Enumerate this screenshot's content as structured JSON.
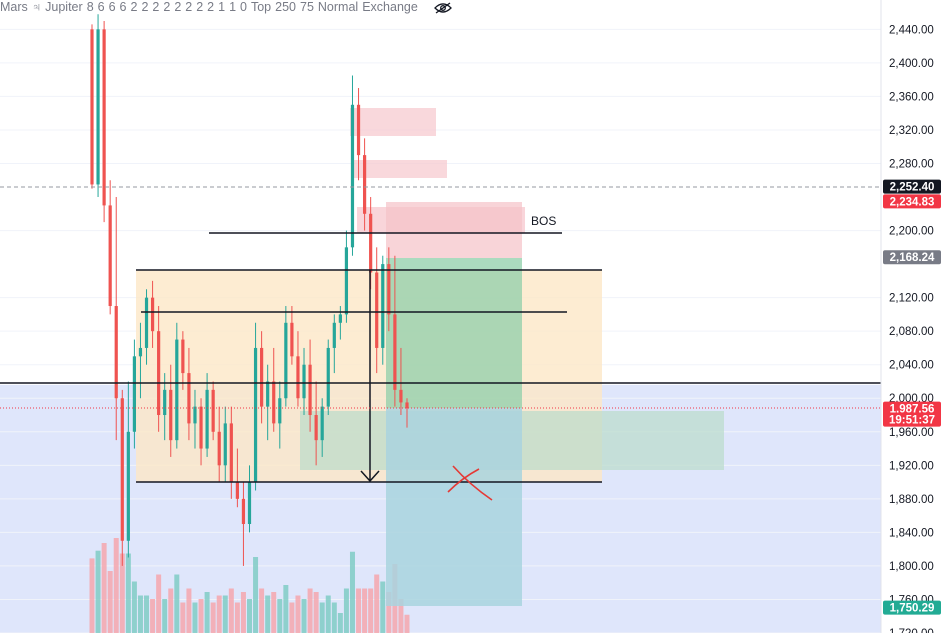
{
  "indicator": {
    "items": [
      "Mars",
      "♃",
      "Jupiter",
      "8",
      "6",
      "6",
      "6",
      "2",
      "2",
      "2",
      "2",
      "2",
      "2",
      "2",
      "2",
      "1",
      "1",
      "0",
      "Top",
      "250",
      "75",
      "Normal",
      "Exchange"
    ]
  },
  "chart_data": {
    "type": "candlestick",
    "y_axis": {
      "ticks": [
        "2,440.00",
        "2,400.00",
        "2,360.00",
        "2,320.00",
        "2,280.00",
        "2,200.00",
        "2,120.00",
        "2,080.00",
        "2,040.00",
        "2,000.00",
        "1,960.00",
        "1,920.00",
        "1,880.00",
        "1,840.00",
        "1,800.00",
        "1,760.00",
        "1,720.00"
      ],
      "tick_values": [
        2440,
        2400,
        2360,
        2320,
        2280,
        2200,
        2120,
        2080,
        2040,
        2000,
        1960,
        1920,
        1880,
        1840,
        1800,
        1760,
        1720
      ],
      "range": [
        1720,
        2475
      ]
    },
    "price_tags": [
      {
        "label": "2,252.40",
        "value": 2252.4,
        "color": "#131722"
      },
      {
        "label": "2,234.83",
        "value": 2234.83,
        "color": "#f23645"
      },
      {
        "label": "2,168.24",
        "value": 2168.24,
        "color": "#787b86"
      },
      {
        "label": "1,987.56",
        "value": 1987.56,
        "color": "#f23645"
      },
      {
        "label": "19:51:37",
        "value": 1974.5,
        "color": "#f23645"
      },
      {
        "label": "1,750.29",
        "value": 1750.29,
        "color": "#22ab94"
      }
    ],
    "annotations": {
      "bos_label": "BOS",
      "bos_level": 2194,
      "lines": [
        2194,
        2150,
        2104,
        2016,
        1898
      ],
      "current_price_line": 1987.56,
      "dashed_level": 2252.4
    },
    "candles": [
      [
        2440,
        2446,
        2250,
        2255
      ],
      [
        2255,
        2458,
        2240,
        2440
      ],
      [
        2440,
        2450,
        2210,
        2230
      ],
      [
        2230,
        2260,
        2100,
        2110
      ],
      [
        2110,
        2240,
        1950,
        2000
      ],
      [
        2000,
        2010,
        1800,
        1830
      ],
      [
        1830,
        2020,
        1810,
        1960
      ],
      [
        1960,
        2070,
        1940,
        2050
      ],
      [
        2050,
        2090,
        2000,
        2060
      ],
      [
        2060,
        2130,
        2040,
        2120
      ],
      [
        2120,
        2140,
        2060,
        2080
      ],
      [
        2080,
        2110,
        1960,
        1980
      ],
      [
        1980,
        2030,
        1950,
        2010
      ],
      [
        2010,
        2040,
        1930,
        1950
      ],
      [
        1950,
        2090,
        1940,
        2070
      ],
      [
        2070,
        2080,
        2010,
        2030
      ],
      [
        2030,
        2060,
        1950,
        1970
      ],
      [
        1970,
        2010,
        1940,
        1990
      ],
      [
        1990,
        2000,
        1920,
        1940
      ],
      [
        1940,
        2030,
        1930,
        2010
      ],
      [
        2010,
        2020,
        1950,
        1960
      ],
      [
        1960,
        1990,
        1900,
        1920
      ],
      [
        1920,
        1990,
        1900,
        1970
      ],
      [
        1970,
        1990,
        1880,
        1900
      ],
      [
        1900,
        1940,
        1870,
        1880
      ],
      [
        1880,
        1900,
        1800,
        1850
      ],
      [
        1850,
        1920,
        1840,
        1900
      ],
      [
        1900,
        2090,
        1890,
        2060
      ],
      [
        2060,
        2080,
        1970,
        1990
      ],
      [
        1990,
        2040,
        1950,
        2020
      ],
      [
        2020,
        2060,
        1960,
        1970
      ],
      [
        1970,
        2020,
        1940,
        2000
      ],
      [
        2000,
        2110,
        1990,
        2090
      ],
      [
        2090,
        2110,
        2040,
        2050
      ],
      [
        2050,
        2080,
        1990,
        2000
      ],
      [
        2000,
        2060,
        1980,
        2040
      ],
      [
        2040,
        2070,
        1960,
        1980
      ],
      [
        1980,
        2020,
        1920,
        1950
      ],
      [
        1950,
        2000,
        1930,
        1990
      ],
      [
        1990,
        2070,
        1980,
        2060
      ],
      [
        2060,
        2100,
        2030,
        2090
      ],
      [
        2090,
        2110,
        2070,
        2100
      ],
      [
        2100,
        2200,
        2090,
        2180
      ],
      [
        2180,
        2385,
        2170,
        2350
      ],
      [
        2350,
        2370,
        2260,
        2290
      ],
      [
        2290,
        2310,
        2200,
        2220
      ],
      [
        2220,
        2240,
        2130,
        2150
      ],
      [
        2150,
        2180,
        2030,
        2060
      ],
      [
        2060,
        2170,
        2040,
        2160
      ],
      [
        2160,
        2180,
        2080,
        2100
      ],
      [
        2100,
        2170,
        1990,
        2010
      ],
      [
        2010,
        2060,
        1980,
        1995
      ],
      [
        1995,
        2000,
        1965,
        1988
      ]
    ]
  }
}
